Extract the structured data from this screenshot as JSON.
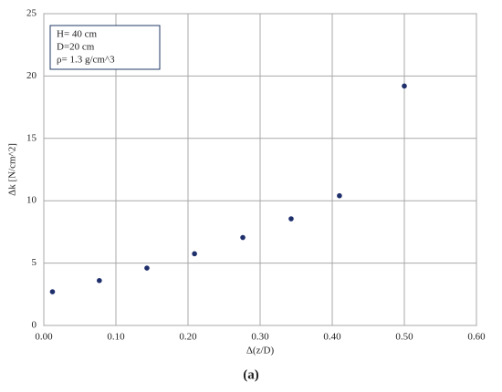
{
  "chart_data": {
    "type": "scatter",
    "x_label": "Δ(z/D)",
    "y_label": "Δk [N/cm^2]",
    "annotations": [
      "H= 40 cm",
      "D=20 cm",
      "ρ= 1.3 g/cm^3"
    ],
    "caption": "(a)",
    "x": [
      0.012,
      0.077,
      0.143,
      0.209,
      0.276,
      0.343,
      0.41,
      0.5
    ],
    "values": [
      2.7,
      3.6,
      4.6,
      5.75,
      7.05,
      8.55,
      10.4,
      19.2
    ],
    "color": "#1f2f6b",
    "xlim": [
      0,
      0.6
    ],
    "xticks": [
      {
        "value": 0,
        "label": "0.00"
      },
      {
        "value": 0.1,
        "label": "0.10"
      },
      {
        "value": 0.2,
        "label": "0.20"
      },
      {
        "value": 0.3,
        "label": "0.30"
      },
      {
        "value": 0.4,
        "label": "0.40"
      },
      {
        "value": 0.5,
        "label": "0.50"
      },
      {
        "value": 0.6,
        "label": "0.60"
      }
    ],
    "ylim": [
      0,
      25
    ],
    "yticks": [
      0,
      5,
      10,
      15,
      20,
      25
    ],
    "grid": true
  }
}
